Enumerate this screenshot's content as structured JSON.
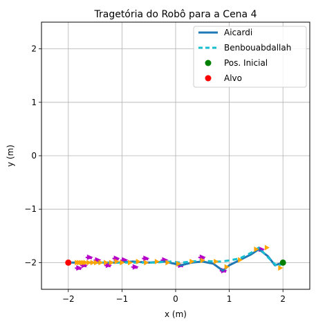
{
  "chart_data": {
    "type": "line",
    "title": "Tragetória do Robô para a Cena 4",
    "xlabel": "x (m)",
    "ylabel": "y (m)",
    "xlim": [
      -2.5,
      2.5
    ],
    "ylim": [
      -2.5,
      2.5
    ],
    "xticks": [
      -2,
      -1,
      0,
      1,
      2
    ],
    "yticks": [
      -2,
      -1,
      0,
      1,
      2
    ],
    "xtick_labels": [
      "−2",
      "−1",
      "0",
      "1",
      "2"
    ],
    "ytick_labels": [
      "−2",
      "−1",
      "0",
      "1",
      "2"
    ],
    "grid": true,
    "legend_position": "top-right",
    "series": [
      {
        "name": "Aicardi",
        "style": "solid",
        "color": "#1f77b4",
        "x": [
          2.0,
          1.85,
          1.72,
          1.55,
          1.4,
          1.2,
          1.0,
          0.88,
          0.7,
          0.5,
          0.3,
          0.1,
          -0.2,
          -0.5,
          -0.8,
          -1.1,
          -1.4,
          -1.6,
          -1.8,
          -2.0
        ],
        "y": [
          -2.0,
          -2.05,
          -1.88,
          -1.75,
          -1.85,
          -1.95,
          -2.05,
          -2.15,
          -2.02,
          -1.98,
          -2.0,
          -2.05,
          -1.98,
          -2.0,
          -1.98,
          -2.0,
          -2.0,
          -2.0,
          -2.0,
          -2.0
        ]
      },
      {
        "name": "Benbouabdallah",
        "style": "dashed",
        "color": "#17becf",
        "x": [
          2.0,
          1.9,
          1.72,
          1.55,
          1.4,
          1.2,
          1.0,
          0.85,
          0.7,
          0.5,
          0.3,
          0.1,
          -0.1,
          -0.4,
          -0.7,
          -1.0,
          -1.3,
          -1.6,
          -1.85,
          -2.0
        ],
        "y": [
          -2.0,
          -2.08,
          -1.9,
          -1.72,
          -1.82,
          -1.92,
          -1.96,
          -1.98,
          -1.98,
          -1.96,
          -1.98,
          -2.0,
          -1.98,
          -2.0,
          -2.0,
          -2.0,
          -2.0,
          -2.0,
          -2.0,
          -2.0
        ]
      },
      {
        "name": "Pos. Inicial",
        "style": "marker",
        "color": "#008000",
        "x": [
          2.0
        ],
        "y": [
          -2.0
        ]
      },
      {
        "name": "Alvo",
        "style": "marker",
        "color": "#ff0000",
        "x": [
          -2.0
        ],
        "y": [
          -2.0
        ]
      }
    ],
    "pose_markers": {
      "orange_color": "#ffa500",
      "purple_color": "#b400c8",
      "orange_x": [
        1.95,
        1.7,
        1.5,
        1.2,
        0.95,
        0.75,
        0.5,
        0.3,
        0.05,
        -0.15,
        -0.35,
        -0.55,
        -0.7,
        -0.85,
        -1.0,
        -1.1,
        -1.2,
        -1.3,
        -1.4,
        -1.48,
        -1.55,
        -1.62,
        -1.68,
        -1.72,
        -1.76,
        -1.8,
        -1.84
      ],
      "orange_y": [
        -2.1,
        -1.72,
        -1.75,
        -1.95,
        -2.08,
        -1.98,
        -1.96,
        -1.98,
        -2.02,
        -2.0,
        -1.98,
        -2.0,
        -1.98,
        -2.0,
        -2.0,
        -1.98,
        -2.0,
        -2.0,
        -2.0,
        -2.0,
        -2.0,
        -2.0,
        -2.0,
        -2.0,
        -2.0,
        -2.0,
        -2.0
      ],
      "purple_x": [
        1.6,
        0.9,
        0.5,
        0.1,
        -0.2,
        -0.55,
        -0.75,
        -0.95,
        -1.1,
        -1.25,
        -1.45,
        -1.6,
        -1.7,
        -1.8
      ],
      "purple_y": [
        -1.75,
        -2.15,
        -1.9,
        -2.05,
        -1.95,
        -1.92,
        -2.08,
        -1.95,
        -1.92,
        -2.05,
        -1.95,
        -1.9,
        -2.05,
        -2.1
      ]
    }
  }
}
